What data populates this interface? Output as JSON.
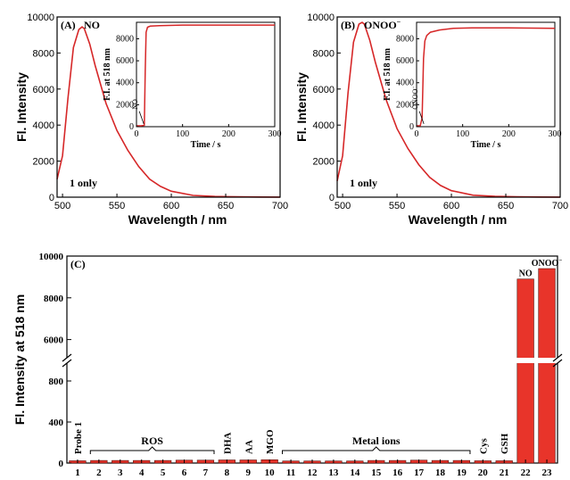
{
  "chart_data": [
    {
      "panel": "(A)",
      "type": "line",
      "ylabel": "Fl. Intensity",
      "xlabel": "Wavelength / nm",
      "xlim": [
        495,
        700
      ],
      "ylim": [
        0,
        10000
      ],
      "xticks": [
        500,
        550,
        600,
        650,
        700
      ],
      "yticks": [
        0,
        2000,
        4000,
        6000,
        8000,
        10000
      ],
      "annotations": {
        "analyte": "NO",
        "note": "1 only"
      },
      "series": [
        {
          "color": "#d62728",
          "x": [
            495,
            500,
            505,
            510,
            515,
            518,
            520,
            525,
            530,
            540,
            550,
            560,
            570,
            580,
            590,
            600,
            620,
            640,
            660,
            680,
            700
          ],
          "y": [
            1000,
            2300,
            5500,
            8300,
            9300,
            9450,
            9350,
            8500,
            7300,
            5200,
            3700,
            2600,
            1700,
            1000,
            600,
            330,
            100,
            40,
            20,
            10,
            5
          ]
        }
      ],
      "inset": {
        "ylabel": "F.I. at 518 nm",
        "xlabel": "Time / s",
        "xlim": [
          0,
          300
        ],
        "ylim": [
          0,
          9500
        ],
        "xticks": [
          0,
          100,
          200,
          300
        ],
        "yticks": [
          0,
          2000,
          4000,
          6000,
          8000
        ],
        "arrow_label": "NO",
        "series": [
          {
            "color": "#d62728",
            "x": [
              0,
              10,
              17,
              19,
              21,
              24,
              30,
              50,
              100,
              200,
              300
            ],
            "y": [
              80,
              80,
              120,
              5000,
              8600,
              9050,
              9150,
              9200,
              9250,
              9250,
              9250
            ]
          }
        ]
      }
    },
    {
      "panel": "(B)",
      "type": "line",
      "ylabel": "Fl. Intensity",
      "xlabel": "Wavelength / nm",
      "xlim": [
        495,
        700
      ],
      "ylim": [
        0,
        10000
      ],
      "xticks": [
        500,
        550,
        600,
        650,
        700
      ],
      "yticks": [
        0,
        2000,
        4000,
        6000,
        8000,
        10000
      ],
      "annotations": {
        "analyte": "ONOO",
        "analyte_sup": "−",
        "note": "1 only"
      },
      "series": [
        {
          "color": "#d62728",
          "x": [
            495,
            500,
            505,
            510,
            515,
            518,
            520,
            525,
            530,
            540,
            550,
            560,
            570,
            580,
            590,
            600,
            620,
            640,
            660,
            680,
            700
          ],
          "y": [
            900,
            2300,
            5800,
            8600,
            9600,
            9700,
            9600,
            8700,
            7500,
            5400,
            3800,
            2700,
            1800,
            1100,
            650,
            360,
            110,
            45,
            20,
            10,
            5
          ]
        }
      ],
      "inset": {
        "ylabel": "F.I. at 518 nm",
        "xlabel": "Time / s",
        "xlim": [
          0,
          300
        ],
        "ylim": [
          0,
          9500
        ],
        "xticks": [
          0,
          100,
          200,
          300
        ],
        "yticks": [
          0,
          2000,
          4000,
          6000,
          8000
        ],
        "arrow_label": "ONOO",
        "arrow_label_sup": "−",
        "series": [
          {
            "color": "#d62728",
            "x": [
              0,
              8,
              12,
              15,
              18,
              22,
              30,
              50,
              80,
              120,
              200,
              300
            ],
            "y": [
              80,
              80,
              800,
              6200,
              7800,
              8300,
              8600,
              8800,
              8950,
              9000,
              9000,
              8950
            ]
          }
        ]
      }
    },
    {
      "panel": "(C)",
      "type": "bar",
      "ylabel": "Fl. Intensity at 518 nm",
      "categories": [
        "1",
        "2",
        "3",
        "4",
        "5",
        "6",
        "7",
        "8",
        "9",
        "10",
        "11",
        "12",
        "13",
        "14",
        "15",
        "16",
        "17",
        "18",
        "19",
        "20",
        "21",
        "22",
        "23"
      ],
      "values": [
        22,
        25,
        25,
        25,
        25,
        28,
        28,
        30,
        30,
        32,
        20,
        20,
        20,
        20,
        25,
        25,
        28,
        25,
        25,
        22,
        22,
        8900,
        9400
      ],
      "yaxis_break": {
        "lower": [
          0,
          1000
        ],
        "upper": [
          5000,
          10000
        ]
      },
      "yticks_lower": [
        0,
        400,
        800
      ],
      "yticks_upper": [
        6000,
        8000,
        10000
      ],
      "bar_color": "#e8342a",
      "bar_labels": [
        {
          "index": 0,
          "text": "Probe 1"
        },
        {
          "index": 7,
          "text": "DHA"
        },
        {
          "index": 8,
          "text": "AA"
        },
        {
          "index": 9,
          "text": "MGO"
        },
        {
          "index": 19,
          "text": "Cys"
        },
        {
          "index": 20,
          "text": "GSH"
        }
      ],
      "top_labels": [
        {
          "index": 21,
          "text": "NO"
        },
        {
          "index": 22,
          "text": "ONOO",
          "sup": "−"
        }
      ],
      "groups": [
        {
          "from": 1,
          "to": 6,
          "text": "ROS"
        },
        {
          "from": 10,
          "to": 18,
          "text": "Metal ions"
        }
      ]
    }
  ]
}
